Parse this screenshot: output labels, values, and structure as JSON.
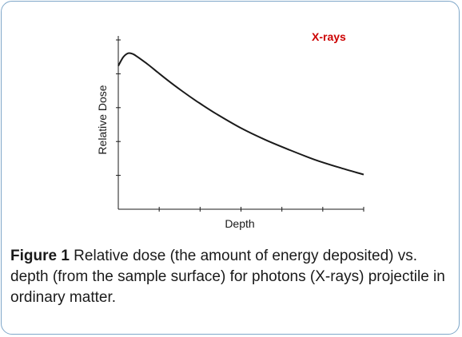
{
  "chart_data": {
    "type": "line",
    "title": "",
    "xlabel": "Depth",
    "ylabel": "Relative Dose",
    "xlim": [
      0,
      10
    ],
    "ylim": [
      0,
      1.1
    ],
    "annotation": "X-rays",
    "annotation_color": "#cc0000",
    "line_color": "#1a1a1a",
    "series": [
      {
        "name": "X-rays",
        "x": [
          0,
          0.2,
          0.4,
          0.6,
          0.8,
          1.2,
          1.6,
          2.0,
          2.6,
          3.2,
          4.0,
          5.0,
          6.0,
          7.0,
          8.0,
          9.0,
          10.0
        ],
        "y": [
          0.91,
          0.965,
          0.99,
          0.985,
          0.965,
          0.92,
          0.87,
          0.82,
          0.75,
          0.685,
          0.605,
          0.515,
          0.44,
          0.375,
          0.315,
          0.265,
          0.22
        ]
      }
    ]
  },
  "caption": {
    "label": "Figure 1",
    "text": " Relative dose (the amount of energy deposited) vs. depth (from the sample surface) for photons (X-rays) projectile in ordinary matter."
  }
}
